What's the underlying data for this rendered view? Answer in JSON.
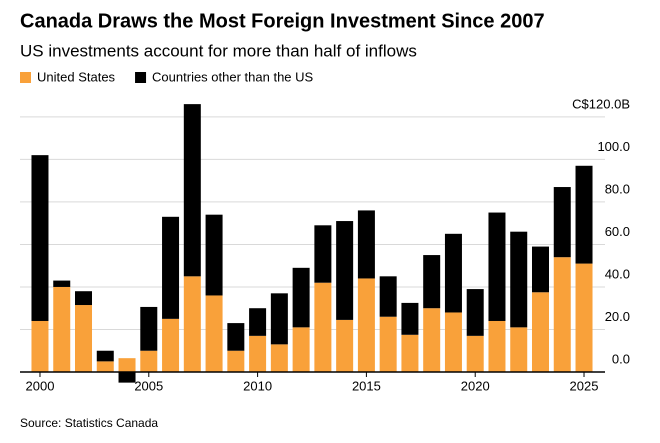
{
  "chart_data": {
    "type": "stacked_bar",
    "title": "Canada Draws the Most Foreign Investment Since 2007",
    "subtitle": "US investments account for more than half of inflows",
    "source": "Source: Statistics Canada",
    "categories": [
      "2000",
      null,
      null,
      null,
      null,
      "2005",
      null,
      null,
      null,
      null,
      "2010",
      null,
      null,
      null,
      null,
      "2015",
      null,
      null,
      null,
      null,
      "2020",
      null,
      null,
      null,
      null,
      "2025"
    ],
    "series": [
      {
        "name": "United States",
        "color": "#f9a13a",
        "values": [
          24,
          40,
          31.5,
          5,
          6.5,
          10,
          25,
          45,
          36,
          10,
          17,
          13,
          21,
          42,
          24.5,
          44,
          26,
          17.5,
          30,
          28,
          17,
          24,
          21,
          37.5,
          54,
          51
        ]
      },
      {
        "name": "Countries other than the US",
        "color": "#000000",
        "values": [
          78,
          3,
          6.5,
          5,
          -5,
          20.6,
          48,
          81,
          38,
          13,
          13,
          24,
          28,
          27,
          46.5,
          32,
          19,
          15,
          25,
          37,
          22,
          51,
          45,
          21.5,
          33,
          46
        ]
      }
    ],
    "ylim": [
      -6,
      127
    ],
    "yticks": [
      {
        "value": 0,
        "label": "0.0"
      },
      {
        "value": 20,
        "label": "20.0"
      },
      {
        "value": 40,
        "label": "40.0"
      },
      {
        "value": 60,
        "label": "60.0"
      },
      {
        "value": 80,
        "label": "80.0"
      },
      {
        "value": 100,
        "label": "100.0"
      },
      {
        "value": 120,
        "label": "C$120.0B"
      }
    ],
    "grid": true,
    "legend": "top-left"
  }
}
